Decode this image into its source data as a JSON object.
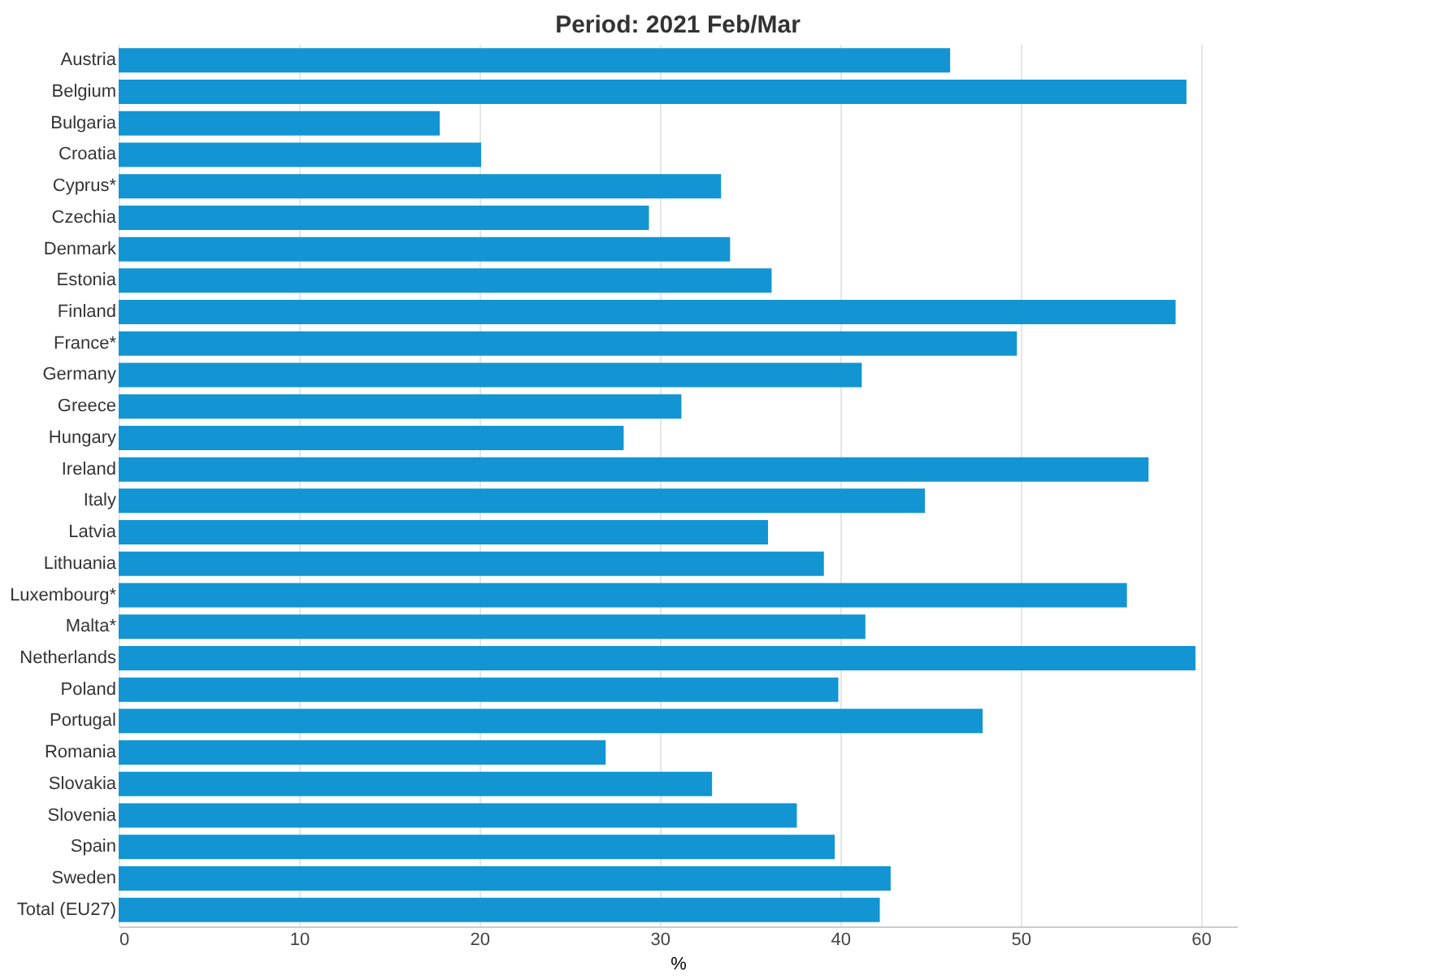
{
  "chart_data": {
    "type": "bar",
    "orientation": "horizontal",
    "title": "Period: 2021 Feb/Mar",
    "xlabel": "%",
    "categories": [
      "Austria",
      "Belgium",
      "Bulgaria",
      "Croatia",
      "Cyprus*",
      "Czechia",
      "Denmark",
      "Estonia",
      "Finland",
      "France*",
      "Germany",
      "Greece",
      "Hungary",
      "Ireland",
      "Italy",
      "Latvia",
      "Lithuania",
      "Luxembourg*",
      "Malta*",
      "Netherlands",
      "Poland",
      "Portugal",
      "Romania",
      "Slovakia",
      "Slovenia",
      "Spain",
      "Sweden",
      "Total (EU27)"
    ],
    "values": [
      46.1,
      59.2,
      17.8,
      20.1,
      33.4,
      29.4,
      33.9,
      36.2,
      58.6,
      49.8,
      41.2,
      31.2,
      28.0,
      57.1,
      44.7,
      36.0,
      39.1,
      55.9,
      41.4,
      59.7,
      39.9,
      47.9,
      27.0,
      32.9,
      37.6,
      39.7,
      42.8,
      42.2
    ],
    "color": "#1295d2",
    "xlim": [
      0,
      62
    ],
    "xticks": [
      0,
      10,
      20,
      30,
      40,
      50,
      60
    ],
    "grid": "x"
  }
}
